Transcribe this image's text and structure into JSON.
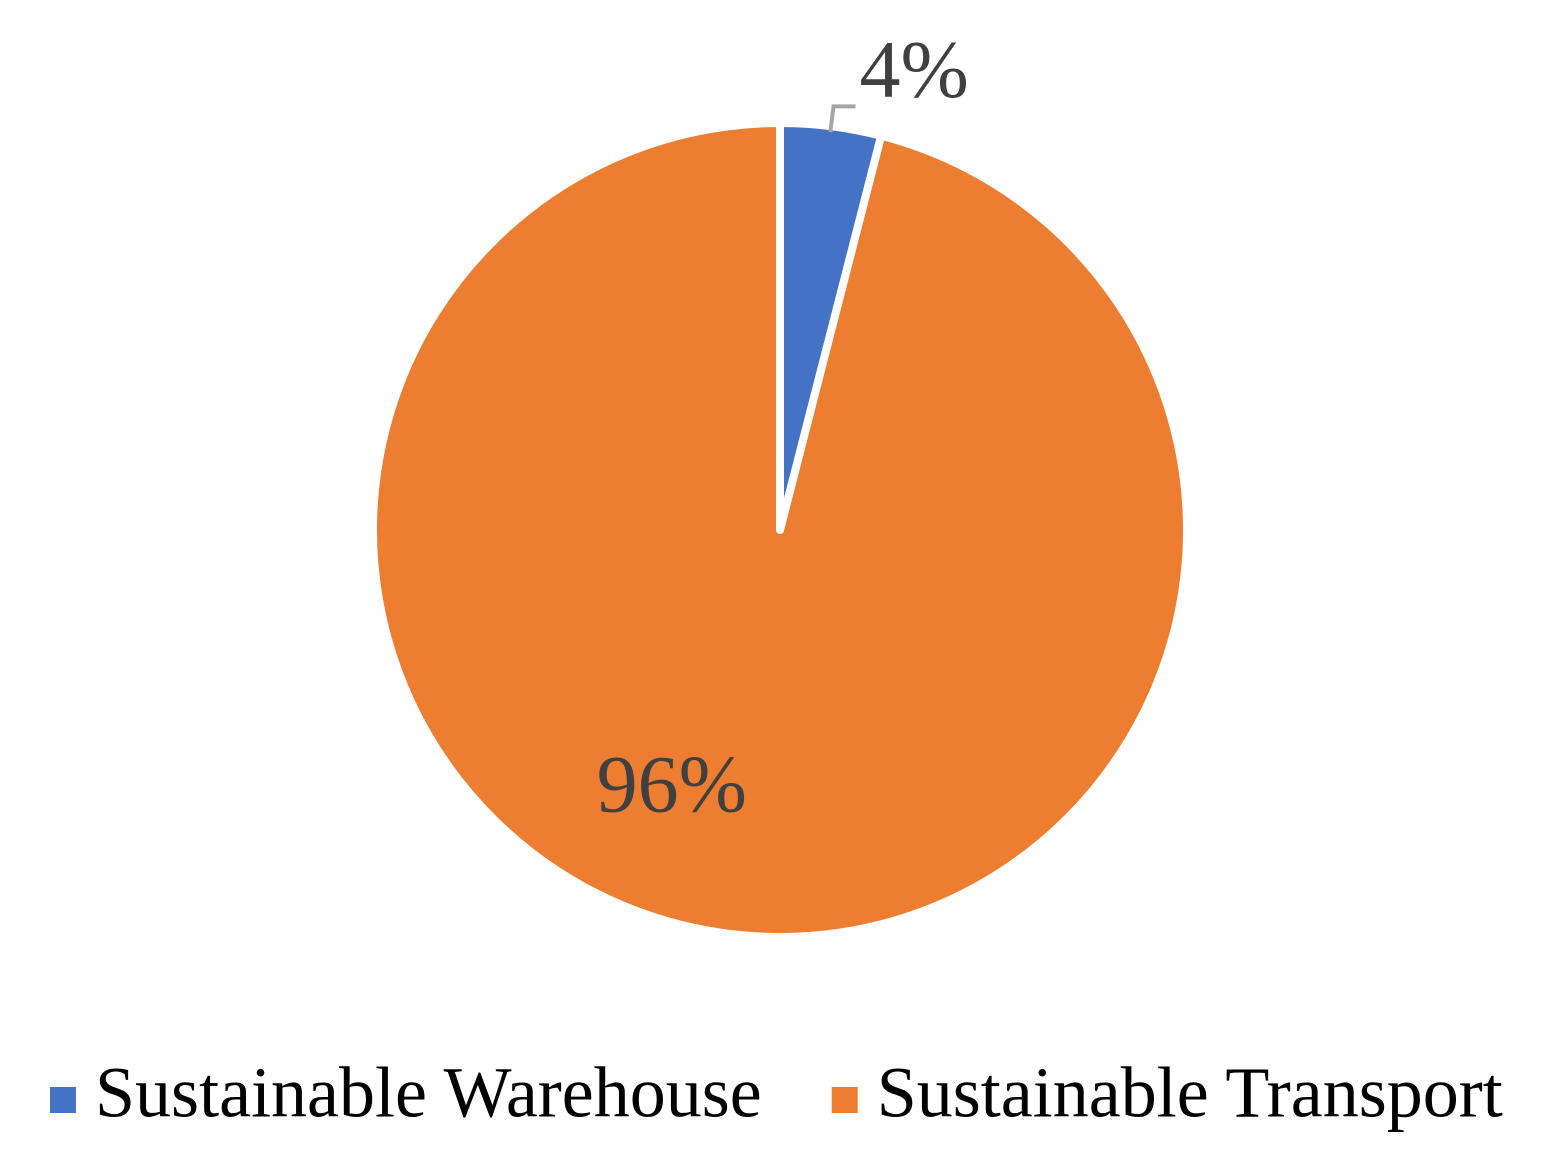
{
  "chart_data": {
    "type": "pie",
    "categories": [
      "Sustainable Warehouse",
      "Sustainable Transport"
    ],
    "values": [
      4,
      96
    ],
    "value_labels": [
      "4%",
      "96%"
    ],
    "colors": [
      "#4472c4",
      "#ed7d31"
    ],
    "legend": "bottom"
  }
}
